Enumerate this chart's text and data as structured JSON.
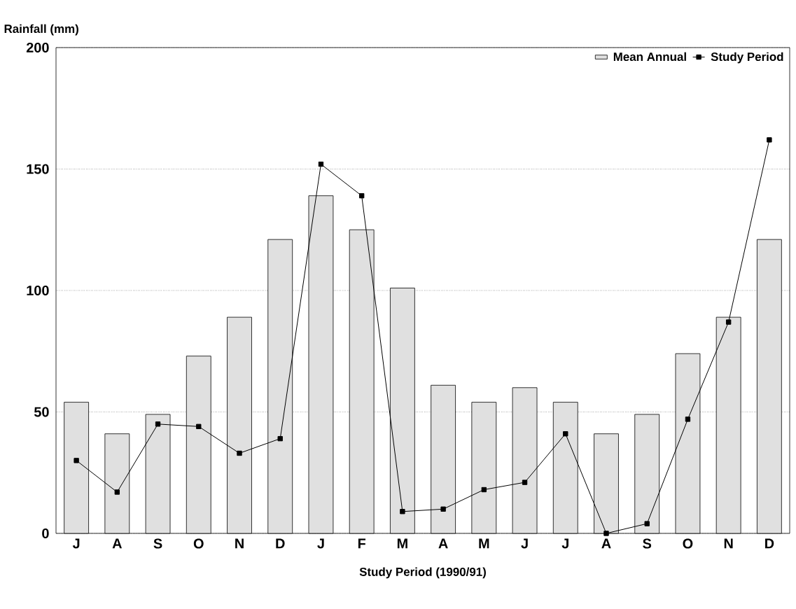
{
  "chart_data": {
    "type": "bar",
    "ylabel": "Rainfall (mm)",
    "xlabel": "Study Period (1990/91)",
    "categories": [
      "J",
      "A",
      "S",
      "O",
      "N",
      "D",
      "J",
      "F",
      "M",
      "A",
      "M",
      "J",
      "J",
      "A",
      "S",
      "O",
      "N",
      "D"
    ],
    "series": [
      {
        "name": "Mean Annual",
        "color": "#e0e0e0",
        "values": [
          54,
          41,
          49,
          73,
          89,
          121,
          139,
          125,
          101,
          61,
          54,
          60,
          54,
          41,
          49,
          74,
          89,
          121
        ]
      },
      {
        "name": "Study Period",
        "type": "line",
        "color": "#000000",
        "marker": "square",
        "values": [
          30,
          17,
          45,
          44,
          33,
          39,
          152,
          139,
          9,
          10,
          18,
          21,
          41,
          0,
          4,
          47,
          87,
          162
        ]
      }
    ],
    "ylim": [
      0,
      200
    ],
    "yticks": [
      0,
      50,
      100,
      150,
      200
    ],
    "grid": "y",
    "legend": "top right"
  }
}
